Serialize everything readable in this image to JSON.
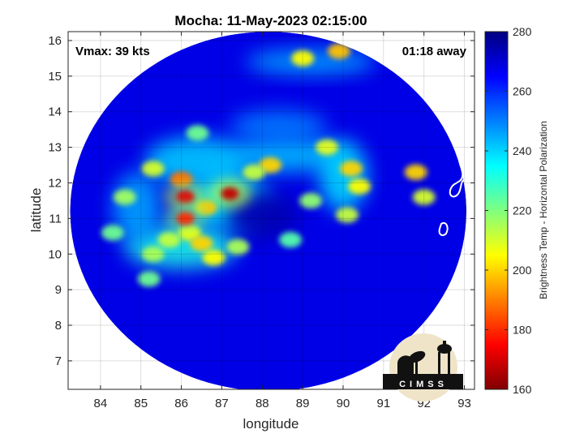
{
  "chart_data": {
    "type": "heatmap",
    "title": "Mocha: 11-May-2023 02:15:00",
    "xlabel": "longitude",
    "ylabel": "latitude",
    "xlim": [
      83.2,
      93.25
    ],
    "ylim": [
      6.2,
      16.25
    ],
    "xticks": [
      84,
      85,
      86,
      87,
      88,
      89,
      90,
      91,
      92,
      93
    ],
    "yticks": [
      7,
      8,
      9,
      10,
      11,
      12,
      13,
      14,
      15,
      16
    ],
    "grid": true,
    "annotations": {
      "vmax": "Vmax: 39 kts",
      "time_away": "01:18 away"
    },
    "logo_text": "CIMSS",
    "colorbar": {
      "label": "Brightness Temp - Horizontal Polarization",
      "range": [
        160,
        280
      ],
      "ticks": [
        160,
        180,
        200,
        220,
        240,
        260,
        280
      ],
      "colormap": "jet"
    },
    "swath": {
      "center": [
        88.15,
        11.2
      ],
      "radius_lon": 4.9,
      "radius_lat": 5.05,
      "background_value": 268
    },
    "features": [
      {
        "kind": "core",
        "lon": 87.2,
        "lat": 11.7,
        "value": 168
      },
      {
        "kind": "core",
        "lon": 86.1,
        "lat": 11.6,
        "value": 172
      },
      {
        "kind": "core",
        "lon": 86.1,
        "lat": 11.0,
        "value": 180
      },
      {
        "kind": "cell",
        "lon": 86.0,
        "lat": 12.1,
        "value": 188
      },
      {
        "kind": "cell",
        "lon": 86.6,
        "lat": 11.3,
        "value": 198
      },
      {
        "kind": "cell",
        "lon": 86.2,
        "lat": 10.6,
        "value": 205
      },
      {
        "kind": "cell",
        "lon": 86.5,
        "lat": 10.3,
        "value": 200
      },
      {
        "kind": "cell",
        "lon": 85.7,
        "lat": 10.4,
        "value": 212
      },
      {
        "kind": "cell",
        "lon": 85.3,
        "lat": 10.0,
        "value": 215
      },
      {
        "kind": "cell",
        "lon": 86.8,
        "lat": 9.9,
        "value": 205
      },
      {
        "kind": "cell",
        "lon": 87.4,
        "lat": 10.2,
        "value": 215
      },
      {
        "kind": "cell",
        "lon": 88.2,
        "lat": 12.5,
        "value": 200
      },
      {
        "kind": "cell",
        "lon": 87.8,
        "lat": 12.3,
        "value": 212
      },
      {
        "kind": "cell",
        "lon": 89.6,
        "lat": 13.0,
        "value": 208
      },
      {
        "kind": "cell",
        "lon": 90.2,
        "lat": 12.4,
        "value": 200
      },
      {
        "kind": "cell",
        "lon": 90.4,
        "lat": 11.9,
        "value": 205
      },
      {
        "kind": "cell",
        "lon": 90.1,
        "lat": 11.1,
        "value": 212
      },
      {
        "kind": "cell",
        "lon": 89.2,
        "lat": 11.5,
        "value": 218
      },
      {
        "kind": "cell",
        "lon": 85.3,
        "lat": 12.4,
        "value": 210
      },
      {
        "kind": "cell",
        "lon": 84.6,
        "lat": 11.6,
        "value": 216
      },
      {
        "kind": "cell",
        "lon": 84.3,
        "lat": 10.6,
        "value": 222
      },
      {
        "kind": "cell",
        "lon": 86.4,
        "lat": 13.4,
        "value": 222
      },
      {
        "kind": "cell",
        "lon": 89.0,
        "lat": 15.5,
        "value": 205
      },
      {
        "kind": "cell",
        "lon": 89.9,
        "lat": 15.7,
        "value": 198
      },
      {
        "kind": "cell",
        "lon": 91.8,
        "lat": 12.3,
        "value": 200
      },
      {
        "kind": "cell",
        "lon": 92.0,
        "lat": 11.6,
        "value": 210
      },
      {
        "kind": "cell",
        "lon": 85.2,
        "lat": 9.3,
        "value": 222
      },
      {
        "kind": "cell",
        "lon": 88.7,
        "lat": 10.4,
        "value": 225
      },
      {
        "kind": "band",
        "lon": 86.0,
        "lat": 10.2,
        "value": 232,
        "rx": 1.4,
        "ry": 0.6
      },
      {
        "kind": "band",
        "lon": 87.2,
        "lat": 11.5,
        "value": 235,
        "rx": 1.0,
        "ry": 0.8
      },
      {
        "kind": "band",
        "lon": 86.4,
        "lat": 12.6,
        "value": 240,
        "rx": 1.3,
        "ry": 0.7
      },
      {
        "kind": "band",
        "lon": 88.6,
        "lat": 12.8,
        "value": 242,
        "rx": 1.4,
        "ry": 0.5
      },
      {
        "kind": "band",
        "lon": 90.0,
        "lat": 12.2,
        "value": 238,
        "rx": 0.6,
        "ry": 1.0
      },
      {
        "kind": "band",
        "lon": 84.9,
        "lat": 11.3,
        "value": 245,
        "rx": 0.6,
        "ry": 1.0
      },
      {
        "kind": "band",
        "lon": 88.4,
        "lat": 13.6,
        "value": 250,
        "rx": 1.2,
        "ry": 0.45
      },
      {
        "kind": "band",
        "lon": 89.2,
        "lat": 15.4,
        "value": 245,
        "rx": 1.6,
        "ry": 0.35
      },
      {
        "kind": "eye",
        "lon": 88.0,
        "lat": 11.1,
        "value": 274,
        "rx": 0.9,
        "ry": 0.7
      }
    ]
  }
}
